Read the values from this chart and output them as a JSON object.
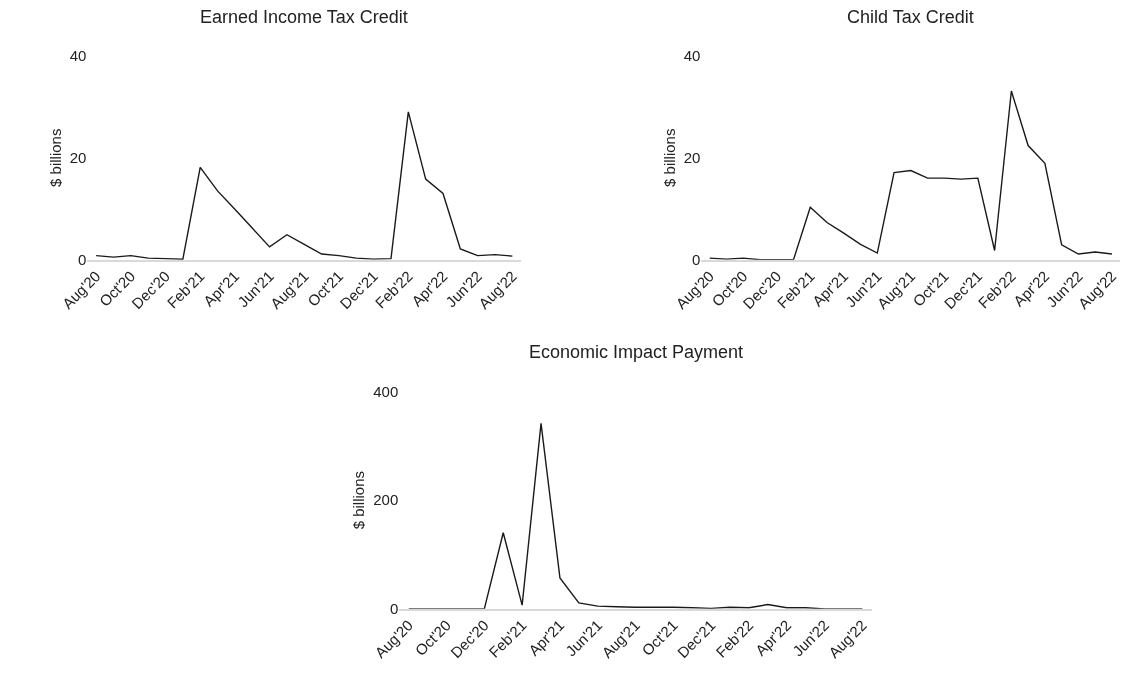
{
  "chart_data": [
    {
      "type": "line",
      "title": "Earned Income Tax Credit",
      "ylabel": "$ billions",
      "categories": [
        "Aug'20",
        null,
        "Oct'20",
        null,
        "Dec'20",
        null,
        "Feb'21",
        null,
        "Apr'21",
        null,
        "Jun'21",
        null,
        "Aug'21",
        null,
        "Oct'21",
        null,
        "Dec'21",
        null,
        "Feb'22",
        null,
        "Apr'22",
        null,
        "Jun'22",
        null,
        "Aug'22"
      ],
      "values": [
        0.8,
        0.5,
        0.8,
        0.3,
        0.2,
        0.1,
        18.1,
        13.5,
        9.9,
        6.2,
        2.5,
        4.9,
        3,
        1.1,
        0.8,
        0.3,
        0.1,
        0.2,
        29,
        15.8,
        13,
        2.1,
        0.8,
        1,
        0.7
      ],
      "color": "#1a1a1a",
      "ylim": [
        0,
        40
      ],
      "yticks": [
        0,
        20,
        40
      ]
    },
    {
      "type": "line",
      "title": "Child Tax Credit",
      "ylabel": "$ billions",
      "categories": [
        "Aug'20",
        null,
        "Oct'20",
        null,
        "Dec'20",
        null,
        "Feb'21",
        null,
        "Apr'21",
        null,
        "Jun'21",
        null,
        "Aug'21",
        null,
        "Oct'21",
        null,
        "Dec'21",
        null,
        "Feb'22",
        null,
        "Apr'22",
        null,
        "Jun'22",
        null,
        "Aug'22"
      ],
      "values": [
        0.3,
        0.1,
        0.3,
        0,
        0,
        0,
        10.3,
        7.3,
        5.2,
        3,
        1.3,
        17.1,
        17.5,
        16,
        16,
        15.8,
        16,
        1.8,
        33.1,
        22.4,
        18.9,
        2.9,
        1.1,
        1.5,
        1.1
      ],
      "color": "#1a1a1a",
      "ylim": [
        0,
        40
      ],
      "yticks": [
        0,
        20,
        40
      ]
    },
    {
      "type": "line",
      "title": "Economic Impact Payment",
      "ylabel": "$ billions",
      "categories": [
        "Aug'20",
        null,
        "Oct'20",
        null,
        "Dec'20",
        null,
        "Feb'21",
        null,
        "Apr'21",
        null,
        "Jun'21",
        null,
        "Aug'21",
        null,
        "Oct'21",
        null,
        "Dec'21",
        null,
        "Feb'22",
        null,
        "Apr'22",
        null,
        "Jun'22",
        null,
        "Aug'22"
      ],
      "values": [
        0,
        0,
        0,
        0,
        0,
        140,
        7,
        341,
        57,
        11,
        5,
        4,
        3,
        3,
        3,
        2,
        1,
        3,
        2,
        8,
        2,
        2,
        0,
        0,
        0
      ],
      "color": "#1a1a1a",
      "ylim": [
        0,
        400
      ],
      "yticks": [
        0,
        200,
        400
      ]
    }
  ]
}
